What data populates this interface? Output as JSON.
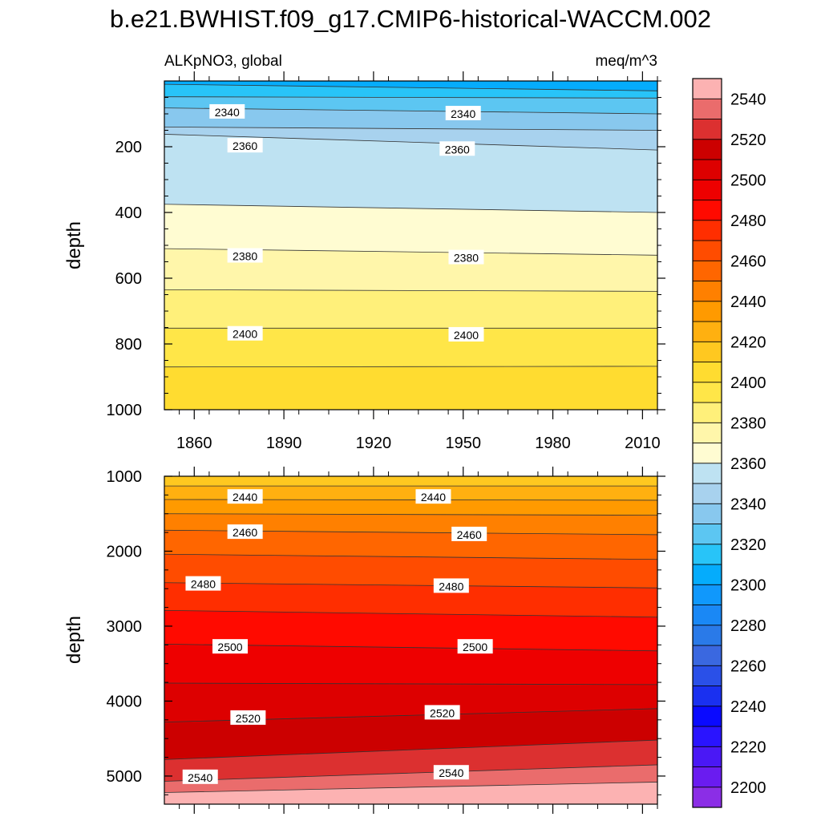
{
  "title": "b.e21.BWHIST.f09_g17.CMIP6-historical-WACCM.002",
  "subtitle_left": "ALKpNO3, global",
  "subtitle_right": "meq/m^3",
  "chart_data": [
    {
      "type": "contour",
      "panel": "upper",
      "xlabel": "",
      "ylabel": "depth",
      "xlim": [
        1850,
        2015
      ],
      "ylim": [
        1000,
        0
      ],
      "x_ticks": [
        1860,
        1890,
        1920,
        1950,
        1980,
        2010
      ],
      "y_ticks": [
        200,
        400,
        600,
        800,
        1000
      ],
      "contours": [
        {
          "level": 2320,
          "depth_start": 10,
          "depth_end": 30
        },
        {
          "level": 2330,
          "depth_start": 48,
          "depth_end": 52
        },
        {
          "level": 2340,
          "depth_start": 82,
          "depth_end": 100
        },
        {
          "level": 2350,
          "depth_start": 140,
          "depth_end": 150
        },
        {
          "level": 2360,
          "depth_start": 162,
          "depth_end": 210
        },
        {
          "level": 2370,
          "depth_start": 375,
          "depth_end": 400
        },
        {
          "level": 2380,
          "depth_start": 510,
          "depth_end": 530
        },
        {
          "level": 2390,
          "depth_start": 635,
          "depth_end": 640
        },
        {
          "level": 2400,
          "depth_start": 752,
          "depth_end": 752
        },
        {
          "level": 2410,
          "depth_start": 870,
          "depth_end": 868
        },
        {
          "level": 2420,
          "depth_start": 1000,
          "depth_end": 1000
        }
      ],
      "labels": [
        {
          "text": "2340",
          "x": 1871,
          "depth": 95
        },
        {
          "text": "2340",
          "x": 1950,
          "depth": 100
        },
        {
          "text": "2360",
          "x": 1877,
          "depth": 198
        },
        {
          "text": "2360",
          "x": 1948,
          "depth": 208
        },
        {
          "text": "2380",
          "x": 1877,
          "depth": 533
        },
        {
          "text": "2380",
          "x": 1951,
          "depth": 538
        },
        {
          "text": "2400",
          "x": 1877,
          "depth": 770
        },
        {
          "text": "2400",
          "x": 1951,
          "depth": 773
        }
      ]
    },
    {
      "type": "contour",
      "panel": "lower",
      "xlabel": "",
      "ylabel": "depth",
      "xlim": [
        1850,
        2015
      ],
      "ylim": [
        5375,
        1000
      ],
      "x_ticks": [
        1860,
        1890,
        1920,
        1950,
        1980,
        2010
      ],
      "y_ticks": [
        1000,
        2000,
        3000,
        4000,
        5000
      ],
      "contours": [
        {
          "level": 2430,
          "depth_start": 1130,
          "depth_end": 1130
        },
        {
          "level": 2440,
          "depth_start": 1310,
          "depth_end": 1320
        },
        {
          "level": 2450,
          "depth_start": 1500,
          "depth_end": 1520
        },
        {
          "level": 2460,
          "depth_start": 1720,
          "depth_end": 1780
        },
        {
          "level": 2470,
          "depth_start": 2040,
          "depth_end": 2110
        },
        {
          "level": 2480,
          "depth_start": 2420,
          "depth_end": 2490
        },
        {
          "level": 2490,
          "depth_start": 2790,
          "depth_end": 2880
        },
        {
          "level": 2500,
          "depth_start": 3240,
          "depth_end": 3330
        },
        {
          "level": 2510,
          "depth_start": 3760,
          "depth_end": 3780
        },
        {
          "level": 2520,
          "depth_start": 4280,
          "depth_end": 4100
        },
        {
          "level": 2530,
          "depth_start": 4780,
          "depth_end": 4520
        },
        {
          "level": 2540,
          "depth_start": 5070,
          "depth_end": 4850
        },
        {
          "level": 2550,
          "depth_start": 5220,
          "depth_end": 5080
        }
      ],
      "labels": [
        {
          "text": "2440",
          "x": 1877,
          "depth": 1280
        },
        {
          "text": "2440",
          "x": 1940,
          "depth": 1280
        },
        {
          "text": "2460",
          "x": 1877,
          "depth": 1750
        },
        {
          "text": "2460",
          "x": 1952,
          "depth": 1780
        },
        {
          "text": "2480",
          "x": 1863,
          "depth": 2440
        },
        {
          "text": "2480",
          "x": 1946,
          "depth": 2470
        },
        {
          "text": "2500",
          "x": 1872,
          "depth": 3280
        },
        {
          "text": "2500",
          "x": 1954,
          "depth": 3280
        },
        {
          "text": "2520",
          "x": 1878,
          "depth": 4230
        },
        {
          "text": "2520",
          "x": 1943,
          "depth": 4160
        },
        {
          "text": "2540",
          "x": 1862,
          "depth": 5020
        },
        {
          "text": "2540",
          "x": 1946,
          "depth": 4960
        }
      ]
    }
  ],
  "colorbar": {
    "levels": [
      2200,
      2210,
      2220,
      2230,
      2240,
      2250,
      2260,
      2270,
      2280,
      2290,
      2300,
      2310,
      2320,
      2330,
      2340,
      2350,
      2360,
      2370,
      2380,
      2390,
      2400,
      2410,
      2420,
      2430,
      2440,
      2450,
      2460,
      2470,
      2480,
      2490,
      2500,
      2510,
      2520,
      2530,
      2540,
      2550
    ],
    "tick_labels": [
      "2200",
      "2220",
      "2240",
      "2260",
      "2280",
      "2300",
      "2320",
      "2340",
      "2360",
      "2380",
      "2400",
      "2420",
      "2440",
      "2460",
      "2480",
      "2500",
      "2520",
      "2540"
    ],
    "colors": [
      "#8b2ee6",
      "#6a1cf0",
      "#4a18f5",
      "#2a14ff",
      "#0a0aff",
      "#1a30f0",
      "#2a50e8",
      "#3a68e0",
      "#2a7ae8",
      "#1a88f5",
      "#1098fc",
      "#05acfc",
      "#28c4f8",
      "#5cc6f2",
      "#88c8ee",
      "#a8d2ee",
      "#bee2f2",
      "#fffcd2",
      "#fff6aa",
      "#fff07a",
      "#ffe648",
      "#ffdc30",
      "#ffc820",
      "#ffb010",
      "#ff9a00",
      "#ff8000",
      "#ff6600",
      "#ff4c00",
      "#ff2e00",
      "#ff0a00",
      "#ee0000",
      "#dd0000",
      "#cc0000",
      "#dc3030",
      "#ea6c6c",
      "#fcb2b2"
    ]
  }
}
